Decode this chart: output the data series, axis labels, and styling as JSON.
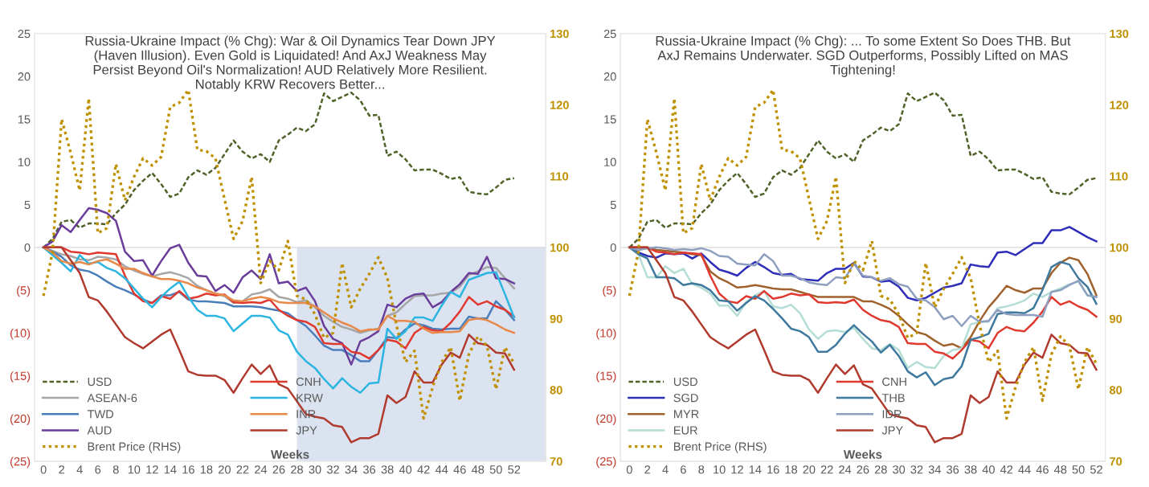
{
  "chart_data": [
    {
      "type": "line",
      "title": "Russia-Ukraine Impact (% Chg): War & Oil Dynamics Tear Down JPY (Haven Illusion). Even Gold is Liquidated! And AxJ Weakness May Persist Beyond Oil's Normalization! AUD Relatively More Resilient. Notably KRW Recovers Better...",
      "xlabel": "Weeks",
      "x": [
        0,
        1,
        2,
        3,
        4,
        5,
        6,
        7,
        8,
        9,
        10,
        11,
        12,
        13,
        14,
        15,
        16,
        17,
        18,
        19,
        20,
        21,
        22,
        23,
        24,
        25,
        26,
        27,
        28,
        29,
        30,
        31,
        32,
        33,
        34,
        35,
        36,
        37,
        38,
        39,
        40,
        41,
        42,
        43,
        44,
        45,
        46,
        47,
        48,
        49,
        50,
        51,
        52
      ],
      "xlim": [
        -1,
        55.5
      ],
      "xticks": [
        0,
        2,
        4,
        6,
        8,
        10,
        12,
        14,
        16,
        18,
        20,
        22,
        24,
        26,
        28,
        30,
        32,
        34,
        36,
        38,
        40,
        42,
        44,
        46,
        48,
        50,
        52
      ],
      "ylim": [
        -25,
        25
      ],
      "yticks": [
        25,
        20,
        15,
        10,
        5,
        0,
        {
          "value": -5,
          "label": "(5)"
        },
        {
          "value": -10,
          "label": "(10)"
        },
        {
          "value": -15,
          "label": "(15)"
        },
        {
          "value": -20,
          "label": "(20)"
        },
        {
          "value": -25,
          "label": "(25)"
        }
      ],
      "y2lim": [
        70,
        130
      ],
      "y2ticks": [
        70,
        80,
        90,
        100,
        110,
        120,
        130
      ],
      "legend": "lower left",
      "ref_lines": [
        {
          "axis": "y",
          "value": 0,
          "color": "#d9d9d9"
        }
      ],
      "bands": [
        {
          "axis": "x",
          "from": 28,
          "to": 55.5,
          "color": "#dce3f0"
        }
      ],
      "series": [
        {
          "name": "USD",
          "color": "#4f6228",
          "line_style": "dashed",
          "values": [
            0,
            1,
            3,
            3.2,
            2.3,
            2.8,
            2.8,
            2.7,
            4,
            5,
            6.7,
            7.8,
            8.7,
            7.4,
            5.9,
            6.3,
            8.2,
            9,
            8.5,
            9.3,
            10.9,
            12.5,
            11.2,
            10.4,
            10.9,
            10,
            12.5,
            13.2,
            14,
            13.6,
            14.4,
            18,
            17.1,
            17.6,
            18.1,
            17.2,
            15.4,
            15.5,
            10.7,
            11.2,
            10.3,
            9,
            9.1,
            9.1,
            8.6,
            8,
            8.2,
            6.5,
            6.3,
            6.2,
            7,
            7.9,
            8.1
          ]
        },
        {
          "name": "ASEAN-6",
          "color": "#a6a6a6",
          "values": [
            0,
            -0.4,
            -0.8,
            -1,
            -1.4,
            -1.5,
            -1.1,
            -1.2,
            -1.4,
            -2.2,
            -2.7,
            -3.1,
            -3.4,
            -3.1,
            -2.9,
            -3.2,
            -3.6,
            -4.5,
            -5,
            -5.4,
            -5.7,
            -6.5,
            -6.3,
            -5.5,
            -5.3,
            -4.9,
            -5.8,
            -6,
            -6.4,
            -6.2,
            -7,
            -8,
            -8.7,
            -9.3,
            -9.6,
            -10,
            -9.7,
            -9.5,
            -8,
            -7.6,
            -6.6,
            -5.7,
            -5.6,
            -5.6,
            -5.4,
            -5.3,
            -4.6,
            -3.2,
            -2.8,
            -2.3,
            -2.4,
            -3.6,
            -4.8
          ]
        },
        {
          "name": "TWD",
          "color": "#4a7ebb",
          "values": [
            0,
            -0.5,
            -1.1,
            -2.1,
            -2.6,
            -2.8,
            -3.3,
            -4,
            -4.6,
            -5,
            -5.5,
            -6.1,
            -6.5,
            -5.6,
            -5.6,
            -5.2,
            -6.1,
            -6.3,
            -6.3,
            -6.4,
            -6.5,
            -6.9,
            -6.9,
            -6.9,
            -7,
            -7.2,
            -7.4,
            -7.7,
            -8.5,
            -9.2,
            -10.3,
            -11.5,
            -12,
            -12,
            -12.6,
            -13.3,
            -13.3,
            -12,
            -10.5,
            -10.6,
            -9.6,
            -8.9,
            -9.1,
            -9.5,
            -9.6,
            -9.5,
            -9.5,
            -8.1,
            -8.3,
            -8.3,
            -6.3,
            -7.3,
            -8.5
          ]
        },
        {
          "name": "AUD",
          "color": "#6a3d9a",
          "values": [
            0,
            0.7,
            2.6,
            1.8,
            3.2,
            4.6,
            4.4,
            4,
            3.1,
            -0.5,
            -1.6,
            -1.5,
            -3.3,
            -1.6,
            -0.1,
            0.3,
            -1.8,
            -3.3,
            -3.4,
            -5.1,
            -4.4,
            -5.3,
            -3.5,
            -2.7,
            -3.7,
            -0.8,
            -4.2,
            -4,
            -5.1,
            -4.7,
            -6.3,
            -9.2,
            -10.7,
            -11.2,
            -13.7,
            -11,
            -10.5,
            -9.8,
            -6.7,
            -7,
            -6,
            -5.5,
            -5.4,
            -7,
            -6.4,
            -5.2,
            -4.3,
            -3,
            -3.1,
            -1.1,
            -3.6,
            -3.7,
            -4.2
          ]
        },
        {
          "name": "Brent Price (RHS)",
          "color": "#bf9000",
          "line_style": "dotted",
          "axis": "y2",
          "values": [
            93.2,
            99.4,
            118,
            113.3,
            108,
            120.9,
            102,
            102.7,
            111.7,
            106.6,
            109.9,
            112.5,
            111.5,
            112.7,
            119.7,
            120.3,
            122.1,
            113.7,
            113.5,
            112.5,
            106.8,
            101.2,
            103.7,
            109.9,
            95,
            98.1,
            96.8,
            100.9,
            93.2,
            92.7,
            90.6,
            87.3,
            88,
            97.8,
            91.6,
            94.2,
            96.3,
            98.6,
            95.7,
            89.1,
            83.9,
            85.5,
            76,
            80.4,
            83.9,
            86,
            78.5,
            85,
            87.5,
            86.2,
            80.1,
            86,
            83.7
          ]
        },
        {
          "name": "CNH",
          "color": "#e0392f",
          "values": [
            0,
            0,
            0,
            -0.5,
            -0.6,
            -0.8,
            -0.6,
            -0.7,
            -0.8,
            -3.3,
            -5.4,
            -6.3,
            -6.5,
            -5.7,
            -6,
            -5.1,
            -6,
            -5.8,
            -5.4,
            -5.6,
            -5.5,
            -6.4,
            -6.5,
            -6.4,
            -6.5,
            -6.1,
            -7.3,
            -8,
            -8.5,
            -8.7,
            -9.3,
            -11.2,
            -11.3,
            -11.3,
            -12.2,
            -12.4,
            -13,
            -12,
            -10.8,
            -11,
            -11.8,
            -10,
            -9.3,
            -9.7,
            -9.8,
            -8.8,
            -7.5,
            -5.8,
            -6.7,
            -6.3,
            -6.9,
            -7.3,
            -8.1
          ]
        },
        {
          "name": "KRW",
          "color": "#2cb5e0",
          "values": [
            0,
            -0.9,
            -1.8,
            -2.8,
            -0.9,
            -1.9,
            -1.7,
            -2.4,
            -2.8,
            -3.6,
            -4.8,
            -6,
            -7,
            -5.8,
            -4.8,
            -4,
            -5.8,
            -7.3,
            -8,
            -8,
            -8.3,
            -9.8,
            -8.9,
            -8,
            -8,
            -8.2,
            -9.7,
            -10.2,
            -12.2,
            -13.3,
            -14.1,
            -15.4,
            -16.5,
            -15.3,
            -16.3,
            -17,
            -15.9,
            -15.8,
            -9.5,
            -10.7,
            -9.8,
            -8.2,
            -8.2,
            -8.6,
            -6.8,
            -5.2,
            -5.8,
            -3.8,
            -3.4,
            -3,
            -2.9,
            -5.5,
            -8.2
          ]
        },
        {
          "name": "INR",
          "color": "#e8894a",
          "values": [
            0,
            -0.6,
            -1.6,
            -1.9,
            -1.7,
            -2,
            -1.6,
            -1.4,
            -1.9,
            -2.5,
            -2.5,
            -3,
            -3.4,
            -3.7,
            -3.7,
            -3.9,
            -4.2,
            -4.7,
            -5,
            -5.4,
            -5.6,
            -6.2,
            -6.3,
            -6,
            -5.8,
            -6,
            -6.4,
            -6.5,
            -6.5,
            -6.5,
            -6.9,
            -7.6,
            -8.3,
            -8.8,
            -9.2,
            -9.8,
            -9.6,
            -9.6,
            -8,
            -8.6,
            -8.6,
            -8.7,
            -9.5,
            -10,
            -9.9,
            -9.9,
            -9.8,
            -8.5,
            -8.3,
            -8.5,
            -9,
            -9.6,
            -10
          ]
        },
        {
          "name": "JPY",
          "color": "#b03a2e",
          "values": [
            0,
            0,
            0,
            -1.5,
            -3,
            -5.8,
            -6.2,
            -7.5,
            -9,
            -10.5,
            -11.2,
            -11.8,
            -11,
            -10.2,
            -9.6,
            -12,
            -14.5,
            -14.9,
            -15,
            -15,
            -15.5,
            -17,
            -15.3,
            -13.7,
            -14.8,
            -13.8,
            -16,
            -16.5,
            -18,
            -19.5,
            -19.8,
            -20,
            -20.8,
            -21,
            -22.8,
            -22.3,
            -22.3,
            -21.8,
            -17.3,
            -18.2,
            -17.5,
            -14.5,
            -15.8,
            -15.8,
            -13.7,
            -12.3,
            -12.9,
            -10.2,
            -11.2,
            -11.4,
            -12.3,
            -12.4,
            -14.3
          ]
        }
      ]
    },
    {
      "type": "line",
      "title": "Russia-Ukraine Impact (% Chg): ... To some Extent So Does THB. But AxJ Remains Underwater. SGD Outperforms, Possibly Lifted on MAS Tightening!",
      "xlabel": "Weeks",
      "x": [
        0,
        1,
        2,
        3,
        4,
        5,
        6,
        7,
        8,
        9,
        10,
        11,
        12,
        13,
        14,
        15,
        16,
        17,
        18,
        19,
        20,
        21,
        22,
        23,
        24,
        25,
        26,
        27,
        28,
        29,
        30,
        31,
        32,
        33,
        34,
        35,
        36,
        37,
        38,
        39,
        40,
        41,
        42,
        43,
        44,
        45,
        46,
        47,
        48,
        49,
        50,
        51,
        52
      ],
      "xlim": [
        -1,
        53
      ],
      "xticks": [
        0,
        2,
        4,
        6,
        8,
        10,
        12,
        14,
        16,
        18,
        20,
        22,
        24,
        26,
        28,
        30,
        32,
        34,
        36,
        38,
        40,
        42,
        44,
        46,
        48,
        50,
        52
      ],
      "ylim": [
        -25,
        25
      ],
      "yticks": [
        25,
        20,
        15,
        10,
        5,
        0,
        {
          "value": -5,
          "label": "(5)"
        },
        {
          "value": -10,
          "label": "(10)"
        },
        {
          "value": -15,
          "label": "(15)"
        },
        {
          "value": -20,
          "label": "(20)"
        },
        {
          "value": -25,
          "label": "(25)"
        }
      ],
      "y2lim": [
        70,
        130
      ],
      "y2ticks": [
        70,
        80,
        90,
        100,
        110,
        120,
        130
      ],
      "legend": "lower left",
      "ref_lines": [
        {
          "axis": "y",
          "value": 0,
          "color": "#d9d9d9"
        }
      ],
      "series": [
        {
          "name": "USD",
          "color": "#4f6228",
          "line_style": "dashed",
          "values": [
            0,
            1,
            3,
            3.2,
            2.3,
            2.8,
            2.8,
            2.7,
            4,
            5,
            6.7,
            7.8,
            8.7,
            7.4,
            5.9,
            6.3,
            8.2,
            9,
            8.5,
            9.3,
            10.9,
            12.5,
            11.2,
            10.4,
            10.9,
            10,
            12.5,
            13.2,
            14,
            13.6,
            14.4,
            18,
            17.1,
            17.6,
            18.1,
            17.2,
            15.4,
            15.5,
            10.7,
            11.2,
            10.3,
            9,
            9.1,
            9.1,
            8.6,
            8,
            8.2,
            6.5,
            6.3,
            6.2,
            7,
            7.9,
            8.1
          ]
        },
        {
          "name": "SGD",
          "color": "#2e2eb8",
          "values": [
            0,
            -0.6,
            -1,
            -1.2,
            -0.7,
            -0.8,
            -0.7,
            -1.3,
            -0.7,
            -1.7,
            -2.6,
            -2.9,
            -3.3,
            -2.4,
            -1.7,
            -2.3,
            -3,
            -3.2,
            -3.1,
            -3.7,
            -3.8,
            -3.9,
            -3,
            -2.5,
            -2.5,
            -1.8,
            -3.4,
            -3.5,
            -4,
            -3.9,
            -4.6,
            -5.9,
            -6.2,
            -5.9,
            -5.3,
            -4.7,
            -4.5,
            -4.2,
            -2,
            -2.2,
            -2.3,
            -0.6,
            -0.5,
            -0.9,
            -0.2,
            0.5,
            0.5,
            2,
            2,
            2.4,
            1.8,
            1.2,
            0.7
          ]
        },
        {
          "name": "MYR",
          "color": "#a0622d",
          "values": [
            0,
            -0.3,
            0,
            -0.3,
            -0.4,
            -0.5,
            -0.6,
            -0.8,
            -0.9,
            -2.8,
            -3.6,
            -4.1,
            -4.7,
            -4.6,
            -4.4,
            -4.6,
            -4.8,
            -4.9,
            -4.9,
            -5.2,
            -5.5,
            -5.8,
            -5.8,
            -5.8,
            -5.8,
            -5.8,
            -6.3,
            -6.3,
            -6.7,
            -7.2,
            -8,
            -9,
            -9.9,
            -10.2,
            -10.9,
            -11.5,
            -11.3,
            -11.8,
            -10.5,
            -8.6,
            -7,
            -5.8,
            -4.5,
            -5,
            -5.3,
            -4.8,
            -4.8,
            -3,
            -1.8,
            -1.2,
            -1.5,
            -3.1,
            -5.6
          ]
        },
        {
          "name": "EUR",
          "color": "#b4ddd6",
          "values": [
            0,
            -0.8,
            -3.5,
            -3.5,
            -2.2,
            -3,
            -2.5,
            -4.3,
            -4.7,
            -5.4,
            -6.8,
            -6.8,
            -8,
            -6.4,
            -5.6,
            -5.1,
            -6.9,
            -7.1,
            -6.7,
            -7.7,
            -9.6,
            -10.7,
            -9.8,
            -9.7,
            -9.9,
            -9.4,
            -10.7,
            -11.8,
            -12,
            -11.3,
            -12,
            -14.1,
            -13.4,
            -14,
            -14.1,
            -12.7,
            -12,
            -11.8,
            -9,
            -8.7,
            -8.7,
            -7.1,
            -6.9,
            -6.6,
            -6.2,
            -5.4,
            -5.8,
            -5.2,
            -4.8,
            -4.3,
            -4,
            -5.6,
            -5.8
          ]
        },
        {
          "name": "Brent Price (RHS)",
          "color": "#bf9000",
          "line_style": "dotted",
          "axis": "y2",
          "values": [
            93.2,
            99.4,
            118,
            113.3,
            108,
            120.9,
            102,
            102.7,
            111.7,
            106.6,
            109.9,
            112.5,
            111.5,
            112.7,
            119.7,
            120.3,
            122.1,
            113.7,
            113.5,
            112.5,
            106.8,
            101.2,
            103.7,
            109.9,
            95,
            98.1,
            96.8,
            100.9,
            93.2,
            92.7,
            90.6,
            87.3,
            88,
            97.8,
            91.6,
            94.2,
            96.3,
            98.6,
            95.7,
            89.1,
            83.9,
            85.5,
            76,
            80.4,
            83.9,
            86,
            78.5,
            85,
            87.5,
            86.2,
            80.1,
            86,
            83.7
          ]
        },
        {
          "name": "CNH",
          "color": "#e0392f",
          "values": [
            0,
            0,
            0,
            -0.5,
            -0.6,
            -0.8,
            -0.6,
            -0.7,
            -0.8,
            -3.3,
            -5.4,
            -6.3,
            -6.5,
            -5.7,
            -6,
            -5.1,
            -6,
            -5.8,
            -5.4,
            -5.6,
            -5.5,
            -6.4,
            -6.5,
            -6.4,
            -6.5,
            -6.1,
            -7.3,
            -8,
            -8.5,
            -8.7,
            -9.3,
            -11.2,
            -11.3,
            -11.3,
            -12.2,
            -12.4,
            -13,
            -12,
            -10.8,
            -11,
            -11.8,
            -10,
            -9.3,
            -9.7,
            -9.8,
            -8.8,
            -7.5,
            -5.8,
            -6.7,
            -6.3,
            -6.9,
            -7.3,
            -8.1
          ]
        },
        {
          "name": "THB",
          "color": "#3f7a9e",
          "values": [
            0,
            -0.8,
            -1.3,
            -3.5,
            -3.5,
            -3.6,
            -4.4,
            -4.2,
            -4.4,
            -5,
            -6.2,
            -6.3,
            -7.4,
            -6.5,
            -5.7,
            -6.2,
            -7.2,
            -8.3,
            -9.5,
            -9.8,
            -10.5,
            -12.2,
            -12.2,
            -11.4,
            -10.1,
            -9.1,
            -10.1,
            -11,
            -12.3,
            -11.4,
            -12.7,
            -14.5,
            -15.2,
            -14.6,
            -16.1,
            -15.4,
            -15.2,
            -13.9,
            -10.8,
            -10.5,
            -10.1,
            -7.8,
            -7.6,
            -7.6,
            -7.7,
            -7.1,
            -5,
            -2.3,
            -1.7,
            -2,
            -3.6,
            -4.6,
            -6.6
          ]
        },
        {
          "name": "IDR",
          "color": "#8e9fc0",
          "values": [
            0,
            -0.3,
            -0.1,
            0,
            -0.1,
            -0.3,
            -0.2,
            -0.3,
            -0.1,
            -0.4,
            -1,
            -1.1,
            -1.9,
            -2,
            -2.1,
            -0.8,
            -1.6,
            -3.3,
            -3.3,
            -3.6,
            -4.1,
            -4.3,
            -4.4,
            -3.5,
            -3.6,
            -1.9,
            -3.3,
            -3.5,
            -3.9,
            -3.6,
            -4.3,
            -4.6,
            -6,
            -6.2,
            -7,
            -8.4,
            -8,
            -9.2,
            -8,
            -8.7,
            -8.6,
            -7.3,
            -7.8,
            -7.9,
            -7.9,
            -7.9,
            -8.1,
            -5.2,
            -5,
            -4.4,
            -3.9,
            -5.6,
            -5.8
          ]
        },
        {
          "name": "JPY",
          "color": "#b03a2e",
          "values": [
            0,
            0,
            0,
            -1.5,
            -3,
            -5.8,
            -6.2,
            -7.5,
            -9,
            -10.5,
            -11.2,
            -11.8,
            -11,
            -10.2,
            -9.6,
            -12,
            -14.5,
            -14.9,
            -15,
            -15,
            -15.5,
            -17,
            -15.3,
            -13.7,
            -14.8,
            -13.8,
            -16,
            -16.5,
            -18,
            -19.5,
            -19.8,
            -20,
            -20.8,
            -21,
            -22.8,
            -22.3,
            -22.3,
            -21.8,
            -17.3,
            -18.2,
            -17.5,
            -14.5,
            -15.8,
            -15.8,
            -13.7,
            -12.3,
            -12.9,
            -10.2,
            -11.2,
            -11.4,
            -12.3,
            -12.4,
            -14.3
          ]
        }
      ]
    }
  ]
}
